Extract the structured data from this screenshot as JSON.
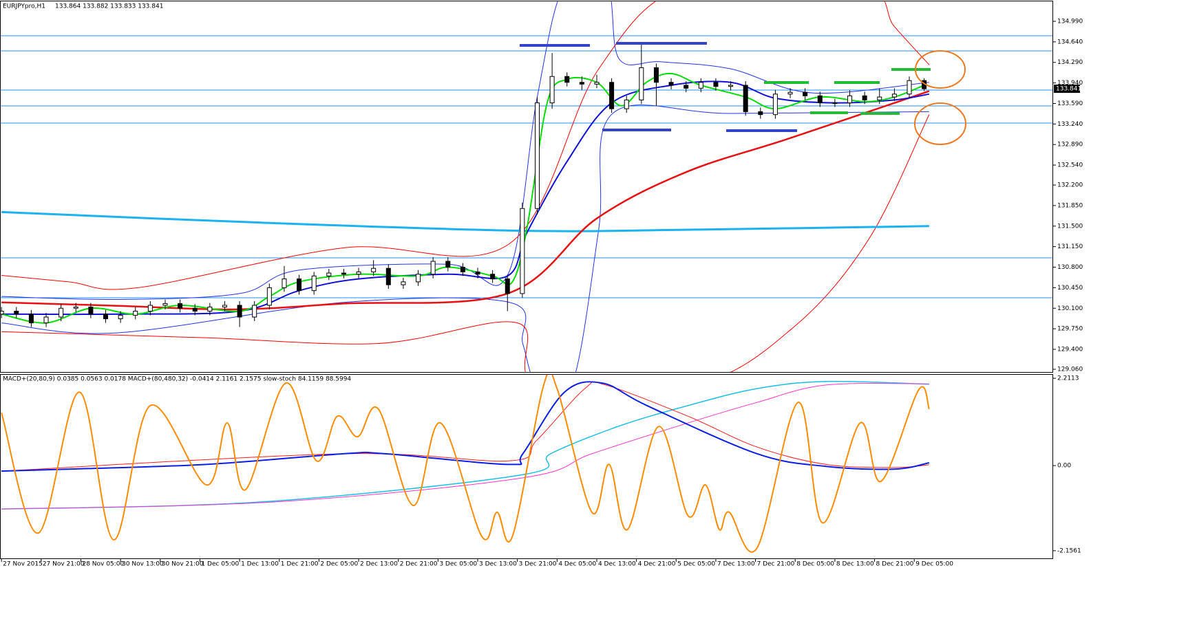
{
  "chart_data": [
    {
      "type": "candlestick",
      "title": "EURJPYpro,H1",
      "subtitle": "133.864 133.882 133.833 133.841",
      "xlim": [
        -0.3,
        212
      ],
      "ylim": [
        129.013,
        135.33
      ],
      "yticks": [
        {
          "value": 134.99,
          "label": "134.990"
        },
        {
          "value": 134.64,
          "label": "134.640"
        },
        {
          "value": 134.29,
          "label": "134.290"
        },
        {
          "value": 133.94,
          "label": "133.940"
        },
        {
          "value": 133.59,
          "label": "133.590"
        },
        {
          "value": 133.24,
          "label": "133.240"
        },
        {
          "value": 132.89,
          "label": "132.890"
        },
        {
          "value": 132.54,
          "label": "132.540"
        },
        {
          "value": 132.2,
          "label": "132.200"
        },
        {
          "value": 131.85,
          "label": "131.850"
        },
        {
          "value": 131.5,
          "label": "131.500"
        },
        {
          "value": 131.15,
          "label": "131.150"
        },
        {
          "value": 130.8,
          "label": "130.800"
        },
        {
          "value": 130.45,
          "label": "130.450"
        },
        {
          "value": 130.1,
          "label": "130.100"
        },
        {
          "value": 129.75,
          "label": "129.750"
        },
        {
          "value": 129.4,
          "label": "129.400"
        },
        {
          "value": 129.06,
          "label": "129.060"
        }
      ],
      "price_marker": 133.841,
      "up_color": "#ffffff",
      "down_color": "#000000",
      "hlines": [
        134.744,
        134.486,
        133.818,
        133.548,
        133.255,
        130.958,
        130.279
      ],
      "hline_color": "#1e90ff",
      "x": [
        0,
        3,
        6,
        9,
        12,
        15,
        18,
        21,
        24,
        27,
        30,
        33,
        36,
        39,
        42,
        45,
        48,
        51,
        54,
        57,
        60,
        63,
        66,
        69,
        72,
        75,
        78,
        81,
        84,
        87,
        90,
        93,
        96,
        99,
        102,
        105,
        108,
        111,
        114,
        117,
        120,
        123,
        126,
        129,
        132,
        135,
        138,
        141,
        144,
        147,
        150,
        153,
        156,
        159,
        162,
        165,
        168,
        171,
        174,
        177,
        180,
        183,
        186
      ],
      "open": [
        130.0,
        130.05,
        130.0,
        129.85,
        129.95,
        130.1,
        130.12,
        130.0,
        129.92,
        129.98,
        130.05,
        130.15,
        130.18,
        130.1,
        130.05,
        130.12,
        130.15,
        129.95,
        130.15,
        130.45,
        130.6,
        130.4,
        130.65,
        130.7,
        130.68,
        130.72,
        130.78,
        130.5,
        130.55,
        130.68,
        130.9,
        130.8,
        130.72,
        130.68,
        130.6,
        130.35,
        131.8,
        133.6,
        134.05,
        133.95,
        133.92,
        133.95,
        133.5,
        133.65,
        134.2,
        133.95,
        133.9,
        133.85,
        133.95,
        133.88,
        133.9,
        133.45,
        133.4,
        133.75,
        133.78,
        133.72,
        133.6,
        133.6,
        133.72,
        133.65,
        133.7,
        133.75,
        133.98
      ],
      "high": [
        130.12,
        130.12,
        130.07,
        130.02,
        130.17,
        130.19,
        130.19,
        130.07,
        130.05,
        130.12,
        130.22,
        130.25,
        130.25,
        130.17,
        130.19,
        130.22,
        130.22,
        130.22,
        130.52,
        130.82,
        130.67,
        130.72,
        130.77,
        130.77,
        130.79,
        130.92,
        130.85,
        130.62,
        130.75,
        130.97,
        130.97,
        130.87,
        130.79,
        130.75,
        130.67,
        131.9,
        133.7,
        134.45,
        134.12,
        134.05,
        134.08,
        134.02,
        133.72,
        134.6,
        134.27,
        134.02,
        133.97,
        134.02,
        134.02,
        133.97,
        133.97,
        133.52,
        133.82,
        133.85,
        133.85,
        133.79,
        133.67,
        133.82,
        133.79,
        133.85,
        133.85,
        134.05,
        134.02
      ],
      "low": [
        129.93,
        129.93,
        129.78,
        129.78,
        129.88,
        130.03,
        129.93,
        129.85,
        129.85,
        129.91,
        129.98,
        130.08,
        130.03,
        129.98,
        129.98,
        130.05,
        129.78,
        129.88,
        130.08,
        130.38,
        130.33,
        130.33,
        130.58,
        130.61,
        130.61,
        130.65,
        130.43,
        130.43,
        130.48,
        130.61,
        130.73,
        130.65,
        130.61,
        130.53,
        130.05,
        130.28,
        131.7,
        133.5,
        133.88,
        133.82,
        133.85,
        133.43,
        133.43,
        133.58,
        133.55,
        133.83,
        133.78,
        133.78,
        133.81,
        133.81,
        133.38,
        133.33,
        133.33,
        133.68,
        133.65,
        133.53,
        133.53,
        133.53,
        133.58,
        133.58,
        133.63,
        133.68,
        133.8
      ],
      "close": [
        130.05,
        130.0,
        129.85,
        129.95,
        130.1,
        130.12,
        130.0,
        129.92,
        129.98,
        130.05,
        130.15,
        130.18,
        130.1,
        130.05,
        130.12,
        130.15,
        129.95,
        130.15,
        130.45,
        130.6,
        130.4,
        130.65,
        130.7,
        130.68,
        130.72,
        130.78,
        130.5,
        130.55,
        130.68,
        130.9,
        130.8,
        130.72,
        130.68,
        130.6,
        130.35,
        131.8,
        133.6,
        134.05,
        133.95,
        133.92,
        133.95,
        133.5,
        133.65,
        134.2,
        133.95,
        133.9,
        133.85,
        133.95,
        133.88,
        133.9,
        133.45,
        133.4,
        133.75,
        133.78,
        133.72,
        133.6,
        133.6,
        133.72,
        133.65,
        133.7,
        133.75,
        133.98,
        133.841
      ],
      "series": [
        {
          "color": "#2233ee",
          "x": [
            0,
            24,
            48,
            60,
            90,
            102,
            108,
            113.5,
            122,
            124.5,
            133,
            147,
            163.4,
            187
          ],
          "values": [
            130.3,
            130.25,
            130.35,
            130.75,
            130.85,
            130.66,
            133.7,
            135.6,
            135.6,
            134.35,
            134.3,
            134.18,
            133.77,
            133.95
          ]
        },
        {
          "color": "#2233ee",
          "x": [
            0,
            23.3,
            69,
            102.4,
            105.1,
            108,
            115,
            120.4,
            123.2,
            147,
            187
          ],
          "values": [
            129.85,
            129.68,
            130.2,
            130.2,
            129.49,
            128.8,
            128.8,
            131.45,
            133.42,
            133.42,
            133.45
          ]
        },
        {
          "color": "#ff0000",
          "x": [
            0,
            13.6,
            27.5,
            69,
            102.4,
            120.4,
            138.4,
            173,
            180,
            187
          ],
          "values": [
            130.66,
            130.55,
            130.45,
            131.13,
            131.2,
            134.18,
            135.6,
            135.6,
            134.9,
            134.25
          ]
        },
        {
          "color": "#ff0000",
          "x": [
            0,
            40,
            76,
            104,
            108,
            140,
            160,
            175,
            187
          ],
          "values": [
            129.7,
            129.6,
            129.5,
            129.85,
            128.8,
            128.8,
            129.8,
            131.3,
            133.4
          ]
        },
        {
          "color": "#1ab2f0",
          "x": [
            0,
            52,
            105,
            140,
            187
          ],
          "values": [
            131.74,
            131.56,
            131.42,
            131.44,
            131.5
          ]
        },
        {
          "color": "#e81010",
          "x": [
            0,
            24,
            47,
            69,
            102,
            120,
            138,
            159,
            187
          ],
          "values": [
            130.2,
            130.14,
            130.08,
            130.18,
            130.35,
            131.63,
            132.42,
            133.0,
            133.8
          ]
        },
        {
          "color": "#1010d8",
          "x": [
            0,
            24,
            48,
            60,
            72,
            90,
            102,
            106,
            114,
            123,
            135,
            147,
            156,
            168,
            180,
            187
          ],
          "values": [
            130.0,
            130.0,
            130.05,
            130.4,
            130.6,
            130.68,
            130.65,
            131.4,
            132.6,
            133.6,
            133.9,
            133.95,
            133.68,
            133.6,
            133.65,
            133.75
          ]
        },
        {
          "color": "#00dd00",
          "x": [
            0,
            9,
            18,
            27,
            36,
            48,
            54,
            60,
            72,
            84,
            90,
            99,
            103,
            106,
            110,
            114,
            120,
            125,
            130,
            135,
            141,
            150,
            156,
            165,
            174,
            180,
            186
          ],
          "values": [
            130.0,
            129.85,
            130.1,
            130.0,
            130.15,
            130.05,
            130.3,
            130.55,
            130.68,
            130.65,
            130.8,
            130.65,
            130.55,
            131.5,
            133.6,
            134.0,
            133.95,
            133.55,
            133.95,
            134.1,
            133.9,
            133.7,
            133.5,
            133.7,
            133.62,
            133.7,
            133.9
          ]
        }
      ]
    },
    {
      "type": "line",
      "title": "MACD+(20,80,9) 0.0385 0.0563 0.0178   MACD+(80,480,32) -0.0414 2.1161 2.1575   slow-stoch 84.1159 88.5994",
      "xlim": [
        -0.3,
        212
      ],
      "ylim": [
        -2.35,
        2.3
      ],
      "yticks": [
        2.2113,
        {
          "value": 0,
          "label": "0.00"
        },
        -2.1561
      ],
      "xticks": [
        {
          "value": 0,
          "label": "27 Nov 2015"
        },
        {
          "value": 8,
          "label": "27 Nov 21:00"
        },
        {
          "value": 16,
          "label": "28 Nov 05:00"
        },
        {
          "value": 24,
          "label": "30 Nov 13:00"
        },
        {
          "value": 32,
          "label": "30 Nov 21:00"
        },
        {
          "value": 40,
          "label": "1 Dec 05:00"
        },
        {
          "value": 48,
          "label": "1 Dec 13:00"
        },
        {
          "value": 56,
          "label": "1 Dec 21:00"
        },
        {
          "value": 64,
          "label": "2 Dec 05:00"
        },
        {
          "value": 72,
          "label": "2 Dec 13:00"
        },
        {
          "value": 80,
          "label": "2 Dec 21:00"
        },
        {
          "value": 88,
          "label": "3 Dec 05:00"
        },
        {
          "value": 96,
          "label": "3 Dec 13:00"
        },
        {
          "value": 104,
          "label": "3 Dec 21:00"
        },
        {
          "value": 112,
          "label": "4 Dec 05:00"
        },
        {
          "value": 120,
          "label": "4 Dec 13:00"
        },
        {
          "value": 128,
          "label": "4 Dec 21:00"
        },
        {
          "value": 136,
          "label": "5 Dec 05:00"
        },
        {
          "value": 144,
          "label": "7 Dec 13:00"
        },
        {
          "value": 152,
          "label": "7 Dec 21:00"
        },
        {
          "value": 160,
          "label": "8 Dec 05:00"
        },
        {
          "value": 168,
          "label": "8 Dec 13:00"
        },
        {
          "value": 176,
          "label": "8 Dec 21:00"
        },
        {
          "value": 184,
          "label": "9 Dec 05:00"
        }
      ],
      "series": [
        {
          "color": "#19bfe6",
          "x": [
            0,
            52.4,
            105.1,
            110.7,
            124.5,
            138.4,
            152.3,
            166.2,
            187
          ],
          "values": [
            -1.1,
            -0.92,
            -0.23,
            0.3,
            1.0,
            1.52,
            1.95,
            2.13,
            2.06
          ]
        },
        {
          "color": "#ff33cc",
          "x": [
            0,
            55.2,
            105.1,
            119,
            138.4,
            152.3,
            166.2,
            187
          ],
          "values": [
            -1.1,
            -0.92,
            -0.31,
            0.3,
            1.08,
            1.6,
            2.04,
            2.07
          ]
        },
        {
          "color": "#ff1a1a",
          "x": [
            0,
            69,
            102.4,
            107.9,
            117.6,
            121.8,
            138.4,
            152.3,
            166.2,
            180,
            187
          ],
          "values": [
            -0.14,
            0.3,
            0.12,
            0.64,
            1.95,
            2.04,
            1.25,
            0.47,
            0.03,
            -0.05,
            0.02
          ]
        },
        {
          "color": "#0a1ee6",
          "x": [
            0,
            13.6,
            41.3,
            69,
            77.4,
            102.4,
            105.1,
            113.5,
            121.1,
            130.1,
            152.3,
            166.2,
            180,
            187
          ],
          "values": [
            -0.14,
            -0.09,
            0.03,
            0.3,
            0.3,
            0.03,
            0.3,
            1.86,
            2.09,
            1.52,
            0.3,
            -0.02,
            -0.09,
            0.07
          ]
        },
        {
          "color": "#ff8c00",
          "x": [
            0,
            7.4,
            15.7,
            22.6,
            30,
            41.3,
            45.5,
            49.2,
            57.3,
            63.5,
            67.7,
            71.8,
            76,
            83,
            88.5,
            96.8,
            99.9,
            103,
            109.3,
            112,
            119,
            122.5,
            126.2,
            132.5,
            138.4,
            141.9,
            144.7,
            146.7,
            152.3,
            160.6,
            165.5,
            173.1,
            177.3,
            184.9,
            187
          ],
          "values": [
            1.34,
            -1.71,
            1.86,
            -1.88,
            1.52,
            -0.49,
            1.08,
            -0.61,
            2.09,
            0.12,
            1.25,
            0.73,
            1.43,
            -1.01,
            1.08,
            -1.79,
            -1.18,
            -1.79,
            2.04,
            1.95,
            -1.18,
            0.03,
            -1.62,
            0.99,
            -1.27,
            -0.49,
            -1.62,
            -1.18,
            -2.09,
            1.6,
            -1.45,
            1.08,
            -0.4,
            1.92,
            1.43
          ]
        }
      ]
    }
  ]
}
